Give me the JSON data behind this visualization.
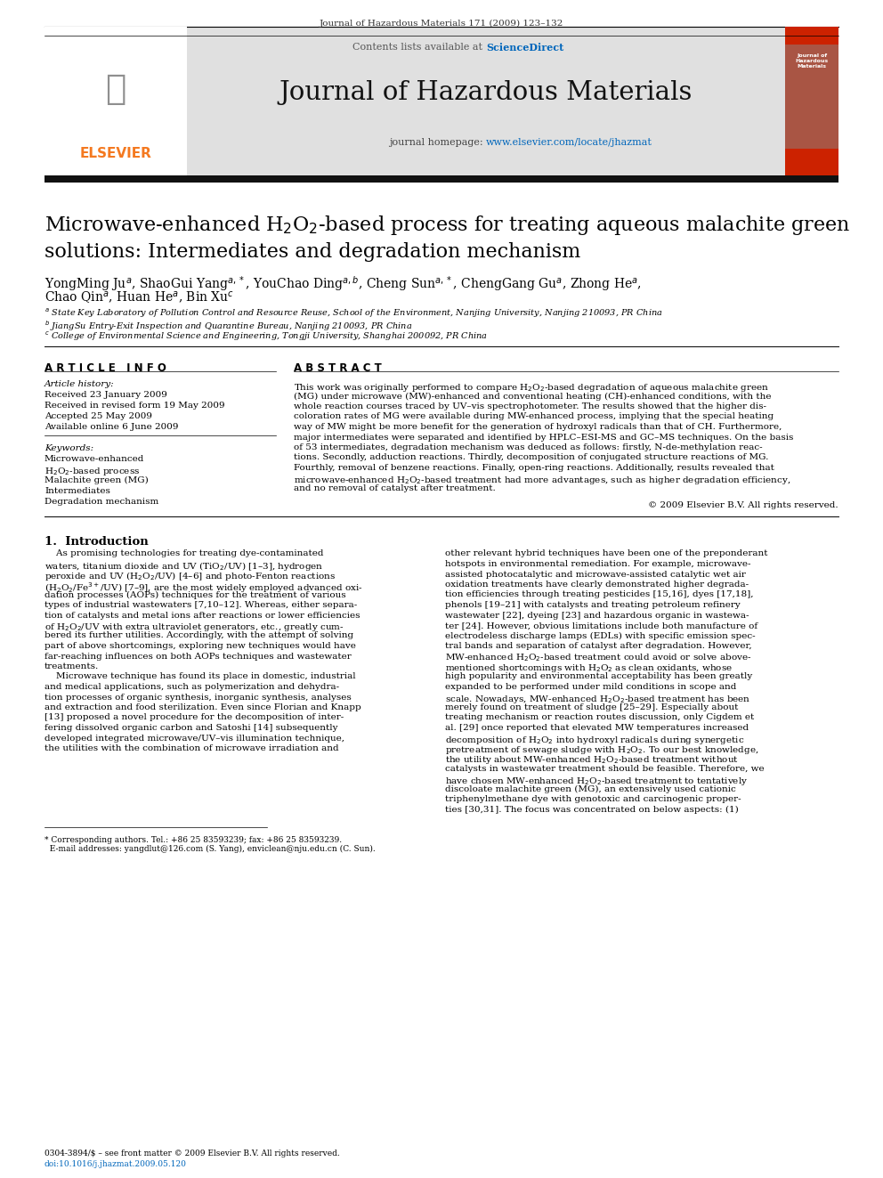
{
  "journal_header": "Journal of Hazardous Materials 171 (2009) 123–132",
  "journal_name": "Journal of Hazardous Materials",
  "contents_text": "Contents lists available at ",
  "sciencedirect_text": "ScienceDirect",
  "homepage_label": "journal homepage: ",
  "homepage_url": "www.elsevier.com/locate/jhazmat",
  "title_line1": "Microwave-enhanced H$_2$O$_2$-based process for treating aqueous malachite green",
  "title_line2": "solutions: Intermediates and degradation mechanism",
  "authors_line1": "YongMing Ju$^a$, ShaoGui Yang$^{a,*}$, YouChao Ding$^{a,b}$, Cheng Sun$^{a,*}$, ChengGang Gu$^a$, Zhong He$^a$,",
  "authors_line2": "Chao Qin$^a$, Huan He$^a$, Bin Xu$^c$",
  "affil_a": "$^a$ State Key Laboratory of Pollution Control and Resource Reuse, School of the Environment, Nanjing University, Nanjing 210093, PR China",
  "affil_b": "$^b$ JiangSu Entry-Exit Inspection and Quarantine Bureau, Nanjing 210093, PR China",
  "affil_c": "$^c$ College of Environmental Science and Engineering, Tongji University, Shanghai 200092, PR China",
  "article_info_header": "A R T I C L E   I N F O",
  "abstract_header": "A B S T R A C T",
  "article_history_label": "Article history:",
  "received": "Received 23 January 2009",
  "received_revised": "Received in revised form 19 May 2009",
  "accepted": "Accepted 25 May 2009",
  "available": "Available online 6 June 2009",
  "keywords_label": "Keywords:",
  "keyword1": "Microwave-enhanced",
  "keyword2": "H$_2$O$_2$-based process",
  "keyword3": "Malachite green (MG)",
  "keyword4": "Intermediates",
  "keyword5": "Degradation mechanism",
  "copyright": "© 2009 Elsevier B.V. All rights reserved.",
  "intro_header": "1.  Introduction",
  "footer_left": "0304-3894/$ – see front matter © 2009 Elsevier B.V. All rights reserved.",
  "footer_doi": "doi:10.1016/j.jhazmat.2009.05.120",
  "bg_color": "#ffffff",
  "header_bg": "#e0e0e0",
  "dark_bar_color": "#111111",
  "elsevier_orange": "#f47920",
  "link_color": "#0066bb",
  "text_color": "#000000",
  "abs_lines": [
    "This work was originally performed to compare H$_2$O$_2$-based degradation of aqueous malachite green",
    "(MG) under microwave (MW)-enhanced and conventional heating (CH)-enhanced conditions, with the",
    "whole reaction courses traced by UV–vis spectrophotometer. The results showed that the higher dis-",
    "coloration rates of MG were available during MW-enhanced process, implying that the special heating",
    "way of MW might be more benefit for the generation of hydroxyl radicals than that of CH. Furthermore,",
    "major intermediates were separated and identified by HPLC–ESI-MS and GC–MS techniques. On the basis",
    "of 53 intermediates, degradation mechanism was deduced as follows: firstly, N-de-methylation reac-",
    "tions. Secondly, adduction reactions. Thirdly, decomposition of conjugated structure reactions of MG.",
    "Fourthly, removal of benzene reactions. Finally, open-ring reactions. Additionally, results revealed that",
    "microwave-enhanced H$_2$O$_2$-based treatment had more advantages, such as higher degradation efficiency,",
    "and no removal of catalyst after treatment."
  ],
  "col1_lines": [
    "    As promising technologies for treating dye-contaminated",
    "waters, titanium dioxide and UV (TiO$_2$/UV) [1–3], hydrogen",
    "peroxide and UV (H$_2$O$_2$/UV) [4–6] and photo-Fenton reactions",
    "(H$_2$O$_2$/Fe$^{3+}$/UV) [7–9], are the most widely employed advanced oxi-",
    "dation processes (AOPs) techniques for the treatment of various",
    "types of industrial wastewaters [7,10–12]. Whereas, either separa-",
    "tion of catalysts and metal ions after reactions or lower efficiencies",
    "of H$_2$O$_2$/UV with extra ultraviolet generators, etc., greatly cum-",
    "bered its further utilities. Accordingly, with the attempt of solving",
    "part of above shortcomings, exploring new techniques would have",
    "far-reaching influences on both AOPs techniques and wastewater",
    "treatments.",
    "    Microwave technique has found its place in domestic, industrial",
    "and medical applications, such as polymerization and dehydra-",
    "tion processes of organic synthesis, inorganic synthesis, analyses",
    "and extraction and food sterilization. Even since Florian and Knapp",
    "[13] proposed a novel procedure for the decomposition of inter-",
    "fering dissolved organic carbon and Satoshi [14] subsequently",
    "developed integrated microwave/UV–vis illumination technique,",
    "the utilities with the combination of microwave irradiation and"
  ],
  "col2_lines": [
    "other relevant hybrid techniques have been one of the preponderant",
    "hotspots in environmental remediation. For example, microwave-",
    "assisted photocatalytic and microwave-assisted catalytic wet air",
    "oxidation treatments have clearly demonstrated higher degrada-",
    "tion efficiencies through treating pesticides [15,16], dyes [17,18],",
    "phenols [19–21] with catalysts and treating petroleum refinery",
    "wastewater [22], dyeing [23] and hazardous organic in wastewa-",
    "ter [24]. However, obvious limitations include both manufacture of",
    "electrodeless discharge lamps (EDLs) with specific emission spec-",
    "tral bands and separation of catalyst after degradation. However,",
    "MW-enhanced H$_2$O$_2$-based treatment could avoid or solve above-",
    "mentioned shortcomings with H$_2$O$_2$ as clean oxidants, whose",
    "high popularity and environmental acceptability has been greatly",
    "expanded to be performed under mild conditions in scope and",
    "scale. Nowadays, MW-enhanced H$_2$O$_2$-based treatment has been",
    "merely found on treatment of sludge [25–29]. Especially about",
    "treating mechanism or reaction routes discussion, only Cigdem et",
    "al. [29] once reported that elevated MW temperatures increased",
    "decomposition of H$_2$O$_2$ into hydroxyl radicals during synergetic",
    "pretreatment of sewage sludge with H$_2$O$_2$. To our best knowledge,",
    "the utility about MW-enhanced H$_2$O$_2$-based treatment without",
    "catalysts in wastewater treatment should be feasible. Therefore, we",
    "have chosen MW-enhanced H$_2$O$_2$-based treatment to tentatively",
    "discoloate malachite green (MG), an extensively used cationic",
    "triphenylmethane dye with genotoxic and carcinogenic proper-",
    "ties [30,31]. The focus was concentrated on below aspects: (1)"
  ]
}
